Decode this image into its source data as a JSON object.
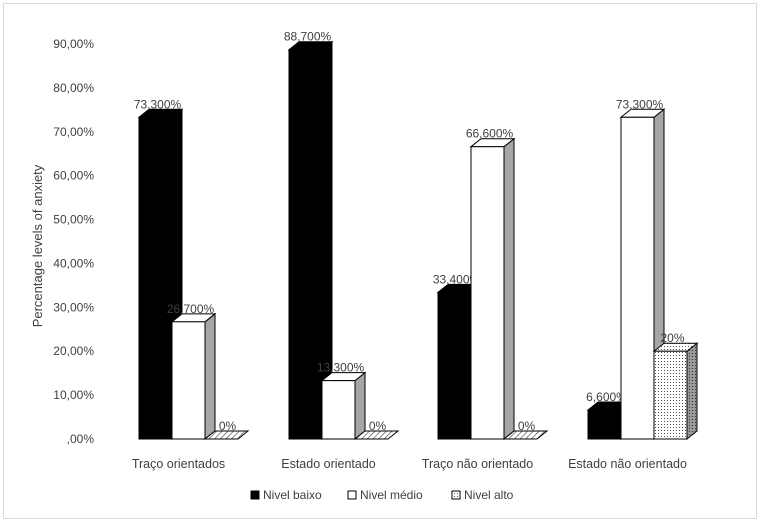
{
  "chart_data": {
    "type": "bar",
    "variant": "3d-clustered-column",
    "title": "",
    "xlabel": "",
    "ylabel": "Percentage levels of anxiety",
    "ylim": [
      0,
      90
    ],
    "yticks": [
      0,
      10,
      20,
      30,
      40,
      50,
      60,
      70,
      80,
      90
    ],
    "ytick_labels": [
      ",00%",
      "10,00%",
      "20,00%",
      "30,00%",
      "40,00%",
      "50,00%",
      "60,00%",
      "70,00%",
      "80,00%",
      "90,00%"
    ],
    "categories": [
      "Traço orientados",
      "Estado orientado",
      "Traço não orientado",
      "Estado não orientado"
    ],
    "series": [
      {
        "name": "Nivel baixo",
        "values": [
          73.3,
          88.7,
          33.4,
          6.6
        ],
        "labels": [
          "73,300%",
          "88,700%",
          "33,400%",
          "6,600%"
        ],
        "fill": "solid",
        "color": "#000000"
      },
      {
        "name": "Nivel médio",
        "values": [
          26.7,
          13.3,
          66.6,
          73.3
        ],
        "labels": [
          "26,700%",
          "13,300%",
          "66,600%",
          "73,300%"
        ],
        "fill": "solid",
        "color": "#ffffff"
      },
      {
        "name": "Nivel alto",
        "values": [
          0,
          0,
          0,
          20
        ],
        "labels": [
          "0%",
          "0%",
          "0%",
          "20%"
        ],
        "fill": "dotted",
        "color": "#ffffff"
      }
    ],
    "grid": false,
    "legend": "bottom"
  }
}
